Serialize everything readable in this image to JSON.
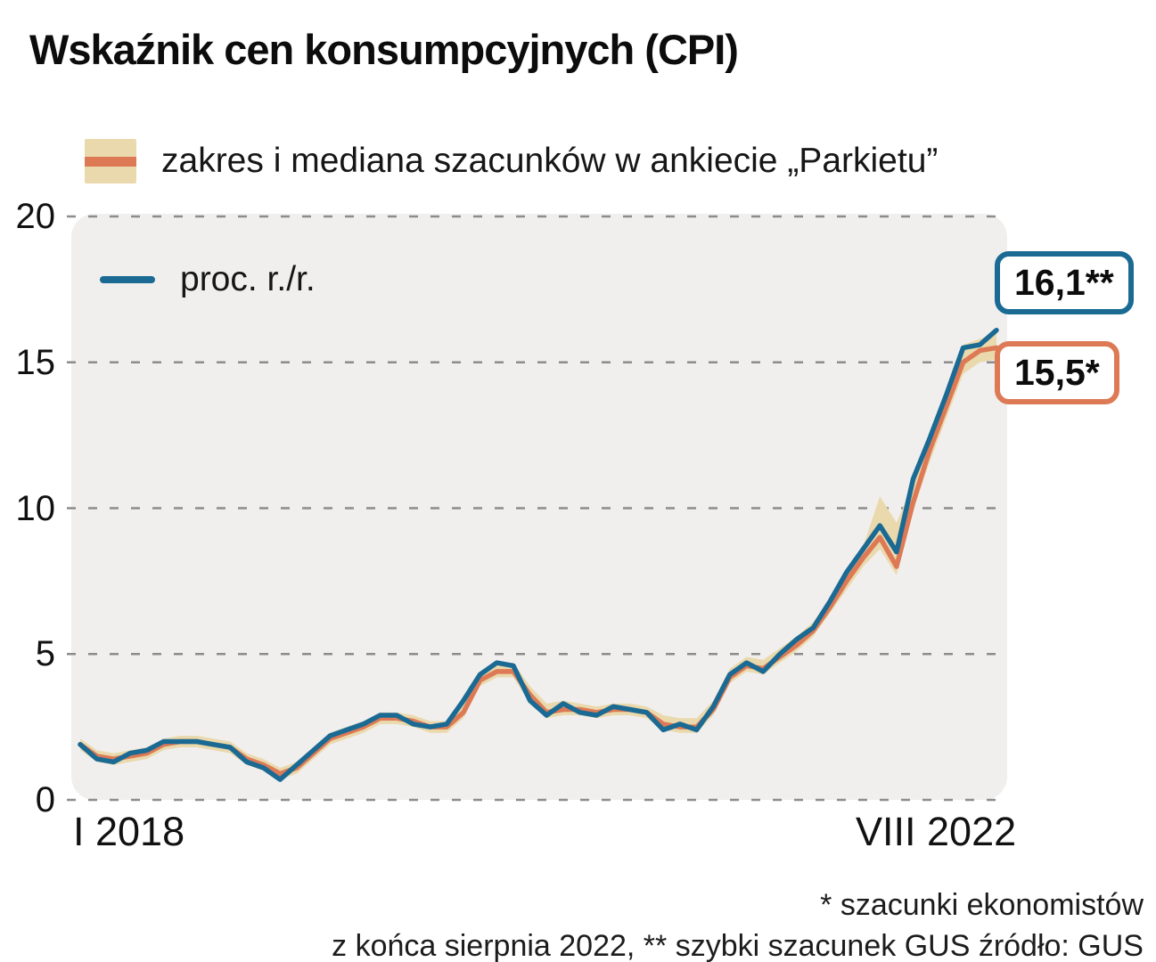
{
  "title": "Wskaźnik cen konsumpcyjnych (CPI)",
  "legend": {
    "band_label": "zakres i mediana szacunków w ankiecie „Parkietu”",
    "line_label": "proc. r./r."
  },
  "footnote": {
    "line1": "* szacunki ekonomistów",
    "line2": "z końca sierpnia 2022, ** szybki szacunek GUS źródło: GUS"
  },
  "chart_data": {
    "type": "line",
    "title": "Wskaźnik cen konsumpcyjnych (CPI)",
    "unit": "proc. r./r.",
    "x_start_label": "I 2018",
    "x_end_label": "VIII 2022",
    "x_range": "monthly, January 2018 - August 2022",
    "ylim": [
      0,
      20
    ],
    "yticks": [
      0,
      5,
      10,
      15,
      20
    ],
    "grid": "dashed horizontal",
    "legend_position": "top-left",
    "series": [
      {
        "name": "proc. r./r. (CPI, dane GUS)",
        "color": "#1a6a94",
        "values": [
          1.9,
          1.4,
          1.3,
          1.6,
          1.7,
          2.0,
          2.0,
          2.0,
          1.9,
          1.8,
          1.3,
          1.1,
          0.7,
          1.2,
          1.7,
          2.2,
          2.4,
          2.6,
          2.9,
          2.9,
          2.6,
          2.5,
          2.6,
          3.4,
          4.3,
          4.7,
          4.6,
          3.4,
          2.9,
          3.3,
          3.0,
          2.9,
          3.2,
          3.1,
          3.0,
          2.4,
          2.6,
          2.4,
          3.2,
          4.3,
          4.7,
          4.4,
          5.0,
          5.5,
          5.9,
          6.8,
          7.8,
          8.6,
          9.4,
          8.5,
          11.0,
          12.4,
          13.9,
          15.5,
          15.6,
          16.1
        ]
      },
      {
        "name": "mediana szacunków w ankiecie „Parkietu”",
        "color": "#dd7a55",
        "values": [
          1.9,
          1.5,
          1.4,
          1.5,
          1.6,
          1.9,
          2.0,
          2.0,
          1.9,
          1.8,
          1.4,
          1.2,
          0.9,
          1.1,
          1.6,
          2.1,
          2.3,
          2.5,
          2.8,
          2.8,
          2.7,
          2.5,
          2.5,
          3.0,
          4.1,
          4.4,
          4.4,
          3.6,
          3.0,
          3.1,
          3.1,
          3.0,
          3.1,
          3.1,
          3.0,
          2.6,
          2.5,
          2.5,
          3.1,
          4.2,
          4.6,
          4.5,
          4.9,
          5.3,
          5.8,
          6.6,
          7.5,
          8.3,
          9.0,
          8.0,
          10.2,
          12.0,
          13.5,
          15.0,
          15.4,
          15.5
        ]
      }
    ],
    "band": {
      "name": "zakres szacunków w ankiecie „Parkietu”",
      "color": "#ead9ac",
      "low": [
        1.7,
        1.3,
        1.2,
        1.3,
        1.4,
        1.7,
        1.8,
        1.8,
        1.7,
        1.6,
        1.2,
        1.0,
        0.7,
        0.9,
        1.4,
        1.9,
        2.1,
        2.3,
        2.6,
        2.6,
        2.5,
        2.3,
        2.3,
        2.8,
        3.9,
        4.2,
        4.2,
        3.3,
        2.8,
        2.9,
        2.9,
        2.8,
        2.9,
        2.9,
        2.8,
        2.4,
        2.3,
        2.3,
        2.9,
        4.0,
        4.4,
        4.3,
        4.7,
        5.1,
        5.6,
        6.4,
        7.2,
        8.0,
        8.6,
        7.7,
        9.9,
        11.6,
        13.1,
        14.6,
        15.0,
        15.1
      ],
      "high": [
        2.1,
        1.7,
        1.6,
        1.7,
        1.8,
        2.1,
        2.2,
        2.2,
        2.1,
        2.0,
        1.6,
        1.4,
        1.1,
        1.3,
        1.8,
        2.3,
        2.5,
        2.7,
        3.0,
        3.0,
        2.9,
        2.7,
        2.7,
        3.3,
        4.4,
        4.7,
        4.7,
        3.9,
        3.3,
        3.4,
        3.3,
        3.2,
        3.3,
        3.3,
        3.2,
        2.9,
        2.8,
        2.8,
        3.4,
        4.5,
        4.9,
        4.8,
        5.2,
        5.6,
        6.1,
        6.9,
        7.8,
        8.7,
        10.4,
        9.5,
        10.8,
        12.6,
        14.1,
        15.6,
        15.8,
        16.0
      ]
    },
    "end_labels": [
      {
        "text": "16,1**",
        "color": "#1a6a94"
      },
      {
        "text": "15,5*",
        "color": "#dd7a55"
      }
    ]
  }
}
